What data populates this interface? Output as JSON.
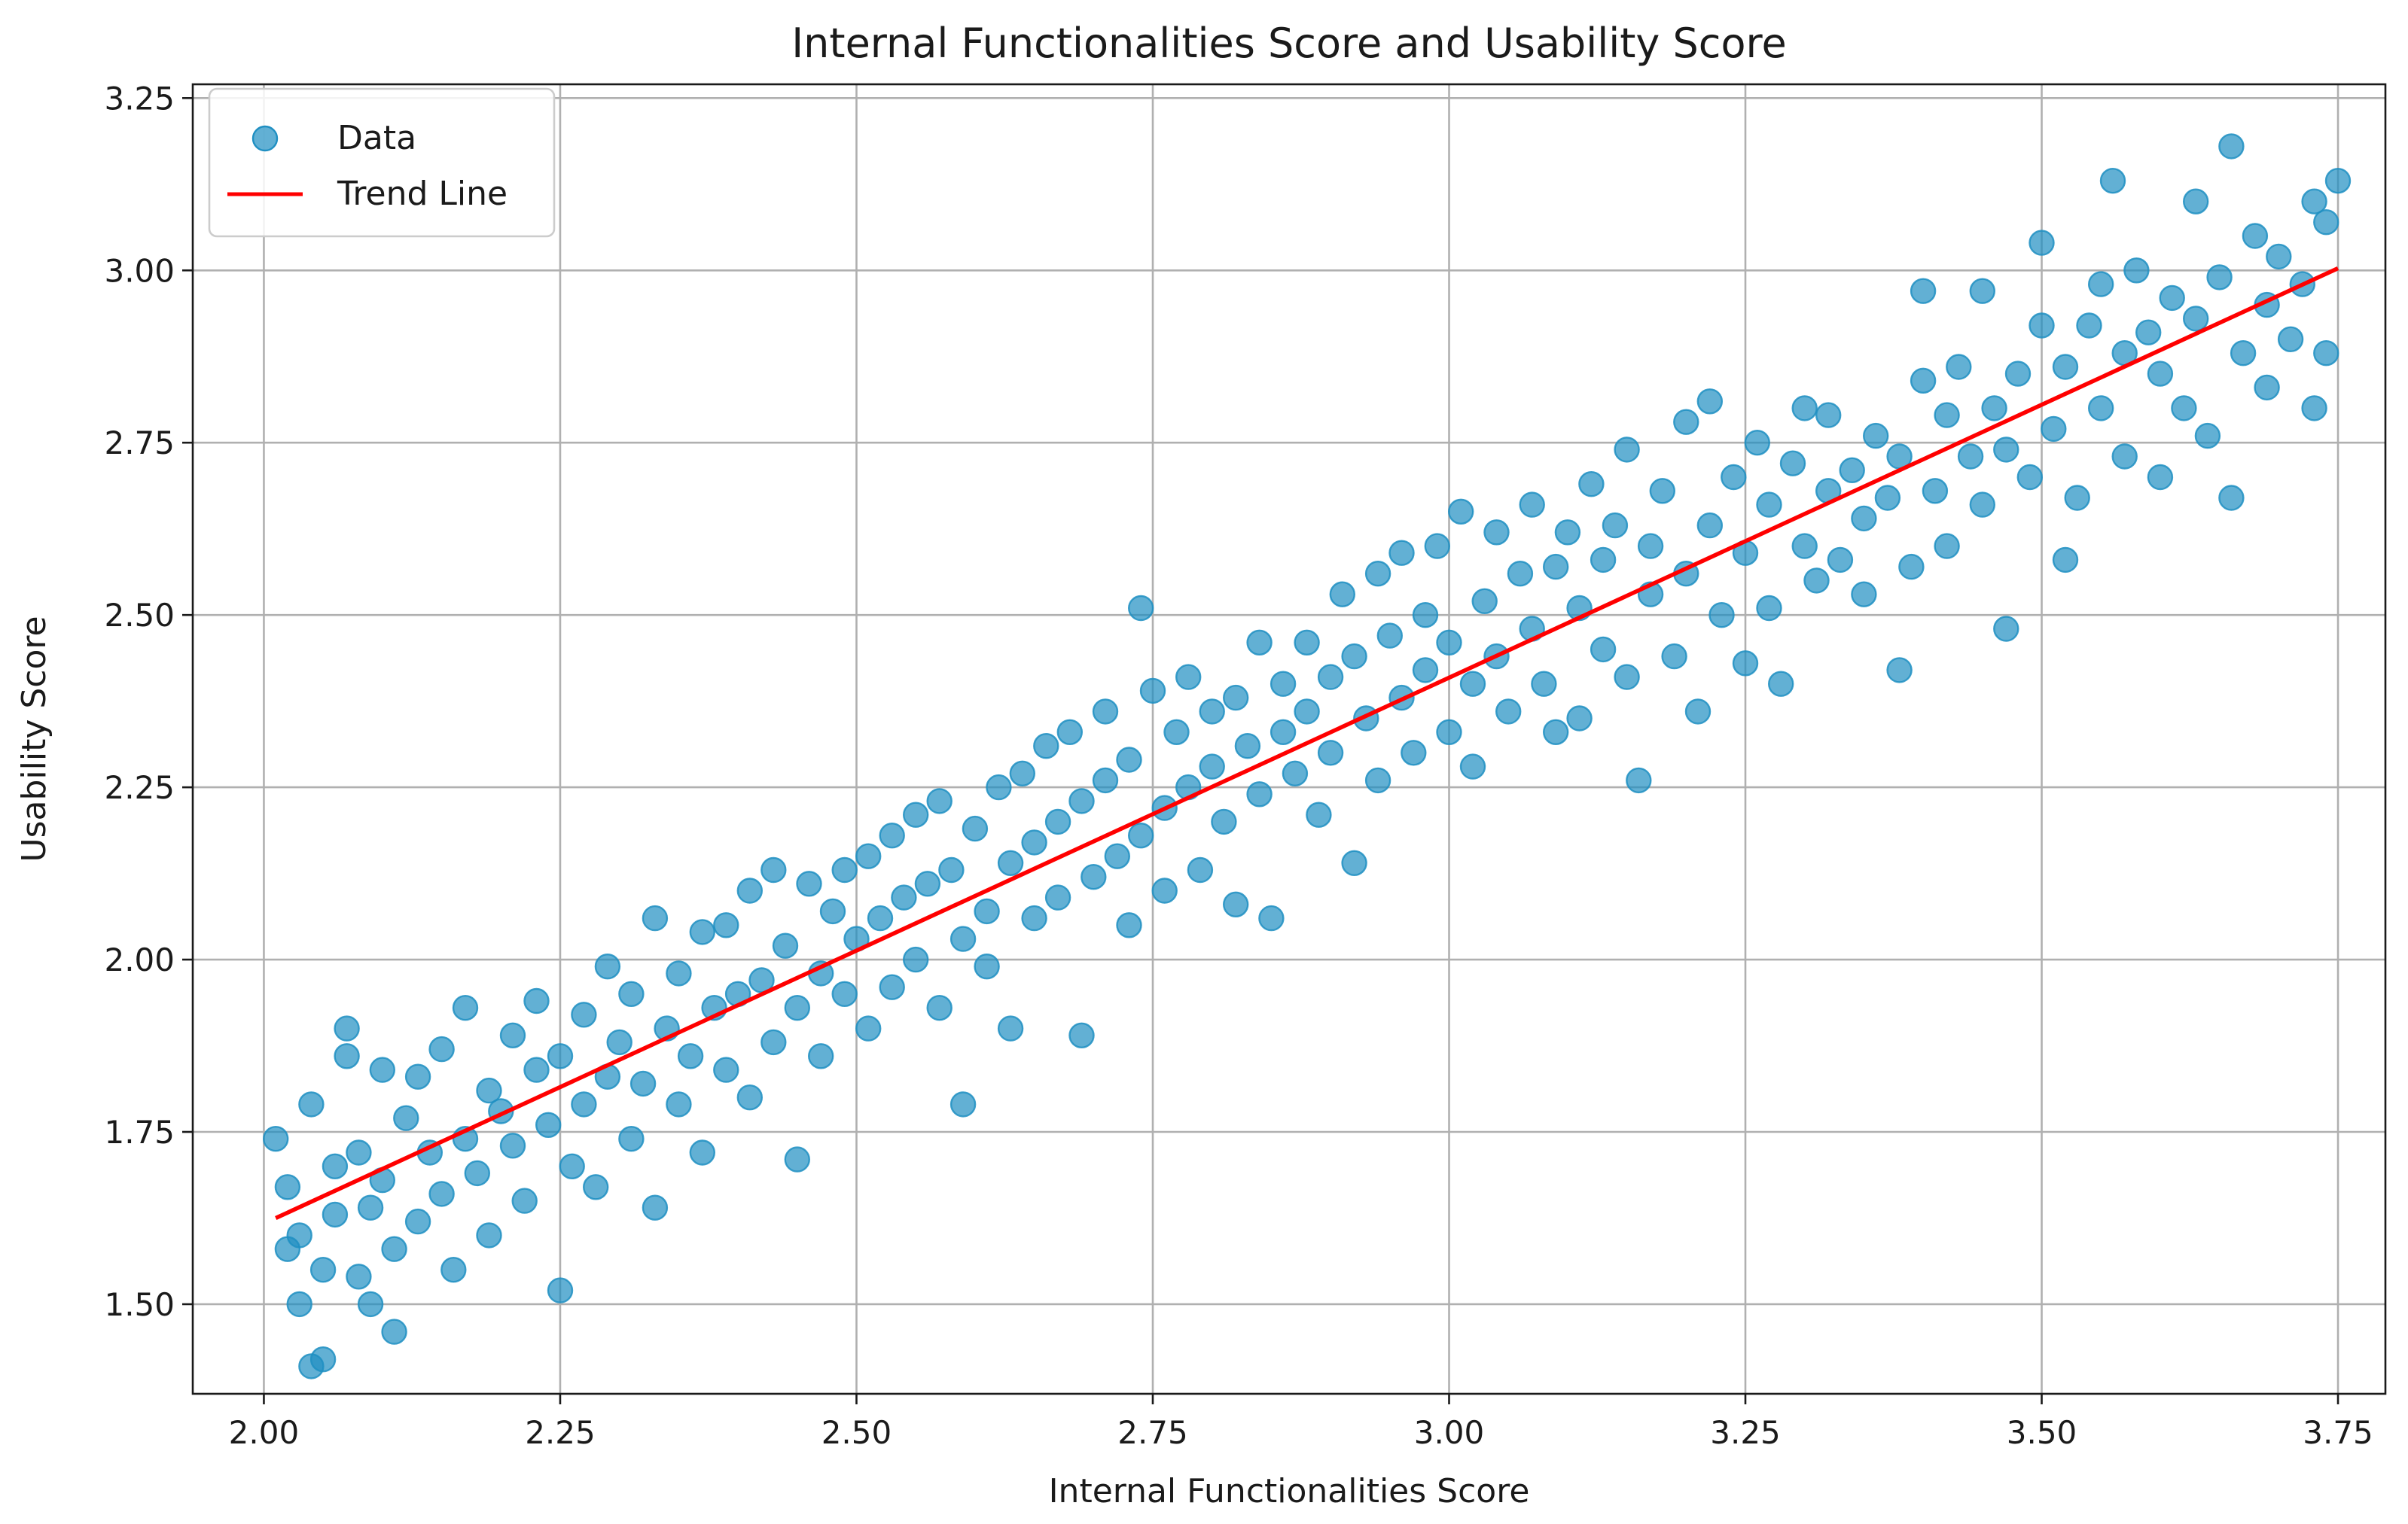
{
  "chart_data": {
    "type": "scatter",
    "title": "Internal Functionalities Score and Usability Score",
    "xlabel": "Internal Functionalities Score",
    "ylabel": "Usability Score",
    "xlim": [
      1.94,
      3.79
    ],
    "ylim": [
      1.37,
      3.27
    ],
    "xticks": [
      2.0,
      2.25,
      2.5,
      2.75,
      3.0,
      3.25,
      3.5,
      3.75
    ],
    "xtick_labels": [
      "2.00",
      "2.25",
      "2.50",
      "2.75",
      "3.00",
      "3.25",
      "3.50",
      "3.75"
    ],
    "yticks": [
      1.5,
      1.75,
      2.0,
      2.25,
      2.5,
      2.75,
      3.0,
      3.25
    ],
    "ytick_labels": [
      "1.50",
      "1.75",
      "2.00",
      "2.25",
      "2.50",
      "2.75",
      "3.00",
      "3.25"
    ],
    "grid": true,
    "legend": {
      "placement": "top-left",
      "entries": [
        {
          "label": "Data",
          "kind": "marker",
          "color": "#1f8fc2"
        },
        {
          "label": "Trend Line",
          "kind": "line",
          "color": "#ff0000"
        }
      ]
    },
    "series": [
      {
        "kind": "scatter",
        "color": "#1f8fc2",
        "points": [
          [
            2.01,
            1.74
          ],
          [
            2.02,
            1.58
          ],
          [
            2.02,
            1.67
          ],
          [
            2.03,
            1.5
          ],
          [
            2.03,
            1.6
          ],
          [
            2.04,
            1.79
          ],
          [
            2.04,
            1.41
          ],
          [
            2.05,
            1.42
          ],
          [
            2.05,
            1.55
          ],
          [
            2.06,
            1.7
          ],
          [
            2.06,
            1.63
          ],
          [
            2.07,
            1.9
          ],
          [
            2.07,
            1.86
          ],
          [
            2.08,
            1.72
          ],
          [
            2.08,
            1.54
          ],
          [
            2.09,
            1.64
          ],
          [
            2.09,
            1.5
          ],
          [
            2.1,
            1.84
          ],
          [
            2.1,
            1.68
          ],
          [
            2.11,
            1.46
          ],
          [
            2.11,
            1.58
          ],
          [
            2.12,
            1.77
          ],
          [
            2.13,
            1.62
          ],
          [
            2.13,
            1.83
          ],
          [
            2.14,
            1.72
          ],
          [
            2.15,
            1.66
          ],
          [
            2.15,
            1.87
          ],
          [
            2.16,
            1.55
          ],
          [
            2.17,
            1.74
          ],
          [
            2.17,
            1.93
          ],
          [
            2.18,
            1.69
          ],
          [
            2.19,
            1.81
          ],
          [
            2.19,
            1.6
          ],
          [
            2.2,
            1.78
          ],
          [
            2.21,
            1.89
          ],
          [
            2.21,
            1.73
          ],
          [
            2.22,
            1.65
          ],
          [
            2.23,
            1.84
          ],
          [
            2.23,
            1.94
          ],
          [
            2.24,
            1.76
          ],
          [
            2.25,
            1.86
          ],
          [
            2.25,
            1.52
          ],
          [
            2.26,
            1.7
          ],
          [
            2.27,
            1.92
          ],
          [
            2.27,
            1.79
          ],
          [
            2.28,
            1.67
          ],
          [
            2.29,
            1.83
          ],
          [
            2.29,
            1.99
          ],
          [
            2.3,
            1.88
          ],
          [
            2.31,
            1.74
          ],
          [
            2.31,
            1.95
          ],
          [
            2.32,
            1.82
          ],
          [
            2.33,
            1.64
          ],
          [
            2.33,
            2.06
          ],
          [
            2.34,
            1.9
          ],
          [
            2.35,
            1.79
          ],
          [
            2.35,
            1.98
          ],
          [
            2.36,
            1.86
          ],
          [
            2.37,
            1.72
          ],
          [
            2.37,
            2.04
          ],
          [
            2.38,
            1.93
          ],
          [
            2.39,
            1.84
          ],
          [
            2.39,
            2.05
          ],
          [
            2.4,
            1.95
          ],
          [
            2.41,
            1.8
          ],
          [
            2.41,
            2.1
          ],
          [
            2.42,
            1.97
          ],
          [
            2.43,
            1.88
          ],
          [
            2.43,
            2.13
          ],
          [
            2.44,
            2.02
          ],
          [
            2.45,
            1.71
          ],
          [
            2.45,
            1.93
          ],
          [
            2.46,
            2.11
          ],
          [
            2.47,
            1.98
          ],
          [
            2.47,
            1.86
          ],
          [
            2.48,
            2.07
          ],
          [
            2.49,
            1.95
          ],
          [
            2.49,
            2.13
          ],
          [
            2.5,
            2.03
          ],
          [
            2.51,
            1.9
          ],
          [
            2.51,
            2.15
          ],
          [
            2.52,
            2.06
          ],
          [
            2.53,
            1.96
          ],
          [
            2.53,
            2.18
          ],
          [
            2.54,
            2.09
          ],
          [
            2.55,
            2.0
          ],
          [
            2.55,
            2.21
          ],
          [
            2.56,
            2.11
          ],
          [
            2.57,
            1.93
          ],
          [
            2.57,
            2.23
          ],
          [
            2.58,
            2.13
          ],
          [
            2.59,
            2.03
          ],
          [
            2.59,
            1.79
          ],
          [
            2.6,
            2.19
          ],
          [
            2.61,
            2.07
          ],
          [
            2.61,
            1.99
          ],
          [
            2.62,
            2.25
          ],
          [
            2.63,
            2.14
          ],
          [
            2.63,
            1.9
          ],
          [
            2.64,
            2.27
          ],
          [
            2.65,
            2.17
          ],
          [
            2.65,
            2.06
          ],
          [
            2.66,
            2.31
          ],
          [
            2.67,
            2.2
          ],
          [
            2.67,
            2.09
          ],
          [
            2.68,
            2.33
          ],
          [
            2.69,
            1.89
          ],
          [
            2.69,
            2.23
          ],
          [
            2.7,
            2.12
          ],
          [
            2.71,
            2.36
          ],
          [
            2.71,
            2.26
          ],
          [
            2.72,
            2.15
          ],
          [
            2.73,
            2.05
          ],
          [
            2.73,
            2.29
          ],
          [
            2.74,
            2.51
          ],
          [
            2.74,
            2.18
          ],
          [
            2.75,
            2.39
          ],
          [
            2.76,
            2.22
          ],
          [
            2.76,
            2.1
          ],
          [
            2.77,
            2.33
          ],
          [
            2.78,
            2.25
          ],
          [
            2.78,
            2.41
          ],
          [
            2.79,
            2.13
          ],
          [
            2.8,
            2.36
          ],
          [
            2.8,
            2.28
          ],
          [
            2.81,
            2.2
          ],
          [
            2.82,
            2.38
          ],
          [
            2.82,
            2.08
          ],
          [
            2.83,
            2.31
          ],
          [
            2.84,
            2.46
          ],
          [
            2.84,
            2.24
          ],
          [
            2.85,
            2.06
          ],
          [
            2.86,
            2.4
          ],
          [
            2.86,
            2.33
          ],
          [
            2.87,
            2.27
          ],
          [
            2.88,
            2.46
          ],
          [
            2.88,
            2.36
          ],
          [
            2.89,
            2.21
          ],
          [
            2.9,
            2.41
          ],
          [
            2.9,
            2.3
          ],
          [
            2.91,
            2.53
          ],
          [
            2.92,
            2.14
          ],
          [
            2.92,
            2.44
          ],
          [
            2.93,
            2.35
          ],
          [
            2.94,
            2.56
          ],
          [
            2.94,
            2.26
          ],
          [
            2.95,
            2.47
          ],
          [
            2.96,
            2.38
          ],
          [
            2.96,
            2.59
          ],
          [
            2.97,
            2.3
          ],
          [
            2.98,
            2.5
          ],
          [
            2.98,
            2.42
          ],
          [
            2.99,
            2.6
          ],
          [
            3.0,
            2.33
          ],
          [
            3.0,
            2.46
          ],
          [
            3.01,
            2.65
          ],
          [
            3.02,
            2.4
          ],
          [
            3.02,
            2.28
          ],
          [
            3.03,
            2.52
          ],
          [
            3.04,
            2.62
          ],
          [
            3.04,
            2.44
          ],
          [
            3.05,
            2.36
          ],
          [
            3.06,
            2.56
          ],
          [
            3.07,
            2.48
          ],
          [
            3.07,
            2.66
          ],
          [
            3.08,
            2.4
          ],
          [
            3.09,
            2.57
          ],
          [
            3.09,
            2.33
          ],
          [
            3.1,
            2.62
          ],
          [
            3.11,
            2.51
          ],
          [
            3.11,
            2.35
          ],
          [
            3.12,
            2.69
          ],
          [
            3.13,
            2.45
          ],
          [
            3.13,
            2.58
          ],
          [
            3.14,
            2.63
          ],
          [
            3.15,
            2.41
          ],
          [
            3.15,
            2.74
          ],
          [
            3.16,
            2.26
          ],
          [
            3.17,
            2.6
          ],
          [
            3.17,
            2.53
          ],
          [
            3.18,
            2.68
          ],
          [
            3.19,
            2.44
          ],
          [
            3.2,
            2.56
          ],
          [
            3.2,
            2.78
          ],
          [
            3.21,
            2.36
          ],
          [
            3.22,
            2.63
          ],
          [
            3.22,
            2.81
          ],
          [
            3.23,
            2.5
          ],
          [
            3.24,
            2.7
          ],
          [
            3.25,
            2.59
          ],
          [
            3.25,
            2.43
          ],
          [
            3.26,
            2.75
          ],
          [
            3.27,
            2.66
          ],
          [
            3.27,
            2.51
          ],
          [
            3.28,
            2.4
          ],
          [
            3.29,
            2.72
          ],
          [
            3.3,
            2.6
          ],
          [
            3.3,
            2.8
          ],
          [
            3.31,
            2.55
          ],
          [
            3.32,
            2.68
          ],
          [
            3.32,
            2.79
          ],
          [
            3.33,
            2.58
          ],
          [
            3.34,
            2.71
          ],
          [
            3.35,
            2.64
          ],
          [
            3.35,
            2.53
          ],
          [
            3.36,
            2.76
          ],
          [
            3.37,
            2.67
          ],
          [
            3.38,
            2.42
          ],
          [
            3.38,
            2.73
          ],
          [
            3.39,
            2.57
          ],
          [
            3.4,
            2.84
          ],
          [
            3.4,
            2.97
          ],
          [
            3.41,
            2.68
          ],
          [
            3.42,
            2.79
          ],
          [
            3.42,
            2.6
          ],
          [
            3.43,
            2.86
          ],
          [
            3.44,
            2.73
          ],
          [
            3.45,
            2.97
          ],
          [
            3.45,
            2.66
          ],
          [
            3.46,
            2.8
          ],
          [
            3.47,
            2.48
          ],
          [
            3.47,
            2.74
          ],
          [
            3.48,
            2.85
          ],
          [
            3.49,
            2.7
          ],
          [
            3.5,
            3.04
          ],
          [
            3.5,
            2.92
          ],
          [
            3.51,
            2.77
          ],
          [
            3.52,
            2.58
          ],
          [
            3.52,
            2.86
          ],
          [
            3.53,
            2.67
          ],
          [
            3.54,
            2.92
          ],
          [
            3.55,
            2.8
          ],
          [
            3.55,
            2.98
          ],
          [
            3.56,
            3.13
          ],
          [
            3.57,
            2.88
          ],
          [
            3.57,
            2.73
          ],
          [
            3.58,
            3.0
          ],
          [
            3.59,
            2.91
          ],
          [
            3.6,
            2.7
          ],
          [
            3.6,
            2.85
          ],
          [
            3.61,
            2.96
          ],
          [
            3.62,
            2.8
          ],
          [
            3.63,
            3.1
          ],
          [
            3.63,
            2.93
          ],
          [
            3.64,
            2.76
          ],
          [
            3.65,
            2.99
          ],
          [
            3.66,
            3.18
          ],
          [
            3.66,
            2.67
          ],
          [
            3.67,
            2.88
          ],
          [
            3.68,
            3.05
          ],
          [
            3.69,
            2.83
          ],
          [
            3.69,
            2.95
          ],
          [
            3.7,
            3.02
          ],
          [
            3.71,
            2.9
          ],
          [
            3.72,
            2.98
          ],
          [
            3.73,
            3.1
          ],
          [
            3.73,
            2.8
          ],
          [
            3.74,
            3.07
          ],
          [
            3.74,
            2.88
          ],
          [
            3.75,
            3.13
          ]
        ]
      },
      {
        "kind": "line",
        "name": "Trend Line",
        "color": "#ff0000",
        "points": [
          [
            2.01,
            1.625
          ],
          [
            3.75,
            3.003
          ]
        ]
      }
    ]
  }
}
